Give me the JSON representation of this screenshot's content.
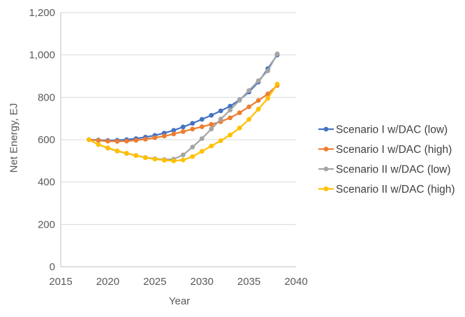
{
  "chart_data": {
    "type": "line",
    "title": "",
    "xlabel": "Year",
    "ylabel": "Net Energy, EJ",
    "xlim": [
      2015,
      2040
    ],
    "ylim": [
      0,
      1200
    ],
    "x_ticks": [
      2015,
      2020,
      2025,
      2030,
      2035,
      2040
    ],
    "y_ticks": [
      0,
      200,
      400,
      600,
      800,
      1000,
      1200
    ],
    "y_tick_labels": [
      "0",
      "200",
      "400",
      "600",
      "800",
      "1,000",
      "1,200"
    ],
    "grid": "horizontal",
    "legend_position": "right",
    "marker": "circle",
    "x": [
      2018,
      2019,
      2020,
      2021,
      2022,
      2023,
      2024,
      2025,
      2026,
      2027,
      2028,
      2029,
      2030,
      2031,
      2032,
      2033,
      2034,
      2035,
      2036,
      2037,
      2038
    ],
    "series": [
      {
        "name": "Scenario I w/DAC (low)",
        "color": "#4472C4",
        "values": [
          600,
          598,
          596,
          597,
          600,
          605,
          612,
          620,
          631,
          644,
          660,
          677,
          696,
          715,
          736,
          758,
          788,
          825,
          872,
          935,
          1000
        ]
      },
      {
        "name": "Scenario I w/DAC (high)",
        "color": "#ED7D31",
        "values": [
          600,
          596,
          593,
          592,
          593,
          597,
          602,
          609,
          617,
          627,
          638,
          650,
          661,
          672,
          685,
          703,
          727,
          755,
          785,
          816,
          856
        ]
      },
      {
        "name": "Scenario II w/DAC (low)",
        "color": "#A5A5A5",
        "values": [
          600,
          577,
          560,
          546,
          535,
          525,
          516,
          510,
          506,
          508,
          528,
          565,
          605,
          650,
          697,
          740,
          786,
          832,
          878,
          925,
          1005
        ]
      },
      {
        "name": "Scenario II w/DAC (high)",
        "color": "#FFC000",
        "values": [
          600,
          577,
          561,
          547,
          536,
          525,
          515,
          508,
          503,
          500,
          504,
          520,
          545,
          570,
          595,
          622,
          655,
          696,
          744,
          795,
          862
        ]
      }
    ],
    "axis_color": "#BFBFBF",
    "gridline_color": "#D9D9D9",
    "text_color": "#595959"
  }
}
